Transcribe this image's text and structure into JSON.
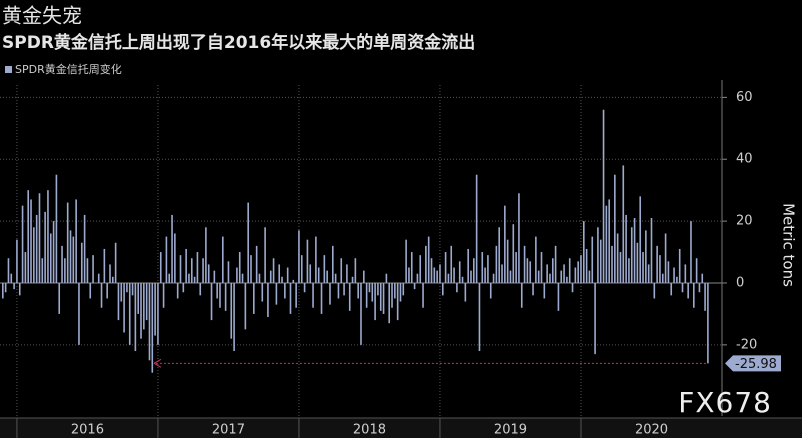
{
  "chart_data": {
    "type": "bar",
    "title": "黄金失宠",
    "subtitle": "SPDR黄金信托上周出现了自2016年以来最大的单周资金流出",
    "y_label": "Metric tons",
    "watermark": "FX678",
    "ylim": [
      -43,
      64
    ],
    "yticks": [
      -20,
      0,
      20,
      40,
      60
    ],
    "xlim": [
      2015.88,
      2021
    ],
    "xticks": [
      2016,
      2017,
      2018,
      2019,
      2020
    ],
    "grid": true,
    "x": [
      2015.9,
      2015.92,
      2015.94,
      2015.96,
      2015.98,
      2016.0,
      2016.02,
      2016.04,
      2016.06,
      2016.08,
      2016.1,
      2016.12,
      2016.14,
      2016.16,
      2016.18,
      2016.2,
      2016.22,
      2016.24,
      2016.26,
      2016.28,
      2016.3,
      2016.32,
      2016.34,
      2016.36,
      2016.38,
      2016.4,
      2016.42,
      2016.44,
      2016.46,
      2016.48,
      2016.5,
      2016.52,
      2016.54,
      2016.56,
      2016.58,
      2016.6,
      2016.62,
      2016.64,
      2016.66,
      2016.68,
      2016.7,
      2016.72,
      2016.74,
      2016.76,
      2016.78,
      2016.8,
      2016.82,
      2016.84,
      2016.86,
      2016.88,
      2016.9,
      2016.92,
      2016.94,
      2016.96,
      2016.98,
      2017.0,
      2017.02,
      2017.04,
      2017.06,
      2017.08,
      2017.1,
      2017.12,
      2017.14,
      2017.16,
      2017.18,
      2017.2,
      2017.22,
      2017.24,
      2017.26,
      2017.28,
      2017.3,
      2017.32,
      2017.34,
      2017.36,
      2017.38,
      2017.4,
      2017.42,
      2017.44,
      2017.46,
      2017.48,
      2017.5,
      2017.52,
      2017.54,
      2017.56,
      2017.58,
      2017.6,
      2017.62,
      2017.64,
      2017.66,
      2017.68,
      2017.7,
      2017.72,
      2017.74,
      2017.76,
      2017.78,
      2017.8,
      2017.82,
      2017.84,
      2017.86,
      2017.88,
      2017.9,
      2017.92,
      2017.94,
      2017.96,
      2017.98,
      2018.0,
      2018.02,
      2018.04,
      2018.06,
      2018.08,
      2018.1,
      2018.12,
      2018.14,
      2018.16,
      2018.18,
      2018.2,
      2018.22,
      2018.24,
      2018.26,
      2018.28,
      2018.3,
      2018.32,
      2018.34,
      2018.36,
      2018.38,
      2018.4,
      2018.42,
      2018.44,
      2018.46,
      2018.48,
      2018.5,
      2018.52,
      2018.54,
      2018.56,
      2018.58,
      2018.6,
      2018.62,
      2018.64,
      2018.66,
      2018.68,
      2018.7,
      2018.72,
      2018.74,
      2018.76,
      2018.78,
      2018.8,
      2018.82,
      2018.84,
      2018.86,
      2018.88,
      2018.9,
      2018.92,
      2018.94,
      2018.96,
      2018.98,
      2019.0,
      2019.02,
      2019.04,
      2019.06,
      2019.08,
      2019.1,
      2019.12,
      2019.14,
      2019.16,
      2019.18,
      2019.2,
      2019.22,
      2019.24,
      2019.26,
      2019.28,
      2019.3,
      2019.32,
      2019.34,
      2019.36,
      2019.38,
      2019.4,
      2019.42,
      2019.44,
      2019.46,
      2019.48,
      2019.5,
      2019.52,
      2019.54,
      2019.56,
      2019.58,
      2019.6,
      2019.62,
      2019.64,
      2019.66,
      2019.68,
      2019.7,
      2019.72,
      2019.74,
      2019.76,
      2019.78,
      2019.8,
      2019.82,
      2019.84,
      2019.86,
      2019.88,
      2019.9,
      2019.92,
      2019.94,
      2019.96,
      2019.98,
      2020.0,
      2020.02,
      2020.04,
      2020.06,
      2020.08,
      2020.1,
      2020.12,
      2020.14,
      2020.16,
      2020.18,
      2020.2,
      2020.22,
      2020.24,
      2020.26,
      2020.28,
      2020.3,
      2020.32,
      2020.34,
      2020.36,
      2020.38,
      2020.4,
      2020.42,
      2020.44,
      2020.46,
      2020.48,
      2020.5,
      2020.52,
      2020.54,
      2020.56,
      2020.58,
      2020.6,
      2020.62,
      2020.64,
      2020.66,
      2020.68,
      2020.7,
      2020.72,
      2020.74,
      2020.76,
      2020.78,
      2020.8,
      2020.82,
      2020.84,
      2020.86,
      2020.88,
      2020.9
    ],
    "series": [
      {
        "name": "SPDR黄金信托周变化",
        "color": "#9eabd0",
        "values": [
          -5,
          -3,
          8,
          3,
          -2,
          14,
          -4,
          25,
          10,
          30,
          27,
          18,
          22,
          29,
          8,
          23,
          30,
          16,
          20,
          35,
          -10,
          12,
          8,
          26,
          17,
          15,
          27,
          -20,
          13,
          22,
          8,
          -5,
          9,
          0,
          3,
          -8,
          11,
          -5,
          6,
          2,
          13,
          -12,
          -6,
          -16,
          -3,
          -20,
          -4,
          -22,
          -10,
          -18,
          -15,
          -12,
          -25,
          -29,
          -17,
          -20,
          10,
          -8,
          15,
          3,
          22,
          16,
          -5,
          9,
          -3,
          11,
          3,
          8,
          2,
          10,
          -4,
          8,
          18,
          6,
          -12,
          4,
          -5,
          -8,
          15,
          -9,
          7,
          -18,
          -22,
          5,
          10,
          3,
          -15,
          26,
          9,
          -10,
          12,
          3,
          -6,
          18,
          -11,
          4,
          8,
          -7,
          6,
          2,
          -5,
          5,
          -10,
          1,
          -8,
          17,
          9,
          -3,
          14,
          6,
          -8,
          15,
          5,
          -10,
          9,
          4,
          -7,
          12,
          3,
          -5,
          8,
          -4,
          6,
          -9,
          2,
          8,
          -5,
          -20,
          4,
          -8,
          -3,
          -6,
          -12,
          -4,
          -9,
          -10,
          3,
          -13,
          -8,
          -5,
          -12,
          -6,
          -4,
          14,
          5,
          10,
          -2,
          3,
          9,
          -8,
          12,
          15,
          8,
          5,
          4,
          6,
          -4,
          10,
          3,
          12,
          5,
          -3,
          7,
          2,
          -6,
          11,
          4,
          8,
          35,
          -22,
          10,
          5,
          9,
          -5,
          3,
          12,
          18,
          6,
          25,
          14,
          4,
          19,
          10,
          29,
          -8,
          12,
          8,
          7,
          -4,
          15,
          4,
          10,
          -5,
          6,
          3,
          8,
          12,
          -9,
          4,
          6,
          2,
          8,
          -3,
          5,
          7,
          9,
          20,
          11,
          4,
          15,
          -23,
          18,
          14,
          56,
          25,
          27,
          12,
          35,
          16,
          10,
          38,
          22,
          8,
          18,
          21,
          13,
          28,
          10,
          17,
          6,
          21,
          -5,
          12,
          9,
          3,
          16,
          7,
          -4,
          5,
          2,
          11,
          -3,
          6,
          -5,
          20,
          -8,
          8,
          -3,
          3,
          -9,
          -25.98
        ]
      }
    ]
  }
}
